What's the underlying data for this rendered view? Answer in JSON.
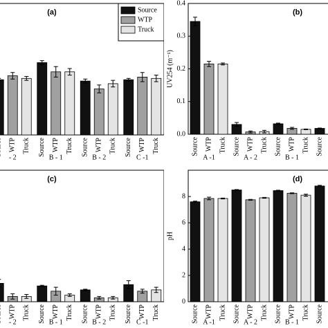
{
  "chart_data": [
    {
      "type": "bar",
      "title": "(a)",
      "categories": [
        "- 2",
        "B - 1",
        "B - 2",
        "C -1"
      ],
      "series": [
        {
          "name": "Source",
          "color": "#111111",
          "values": [
            0.42,
            0.55,
            0.41,
            0.42
          ],
          "errors": [
            0.01,
            0.015,
            0.015,
            0.01
          ]
        },
        {
          "name": "WTP",
          "color": "#a0a0a0",
          "values": [
            0.45,
            0.48,
            0.35,
            0.44
          ],
          "errors": [
            0.025,
            0.04,
            0.03,
            0.035
          ]
        },
        {
          "name": "Truck",
          "color": "#e4e4e4",
          "values": [
            0.43,
            0.48,
            0.39,
            0.43
          ],
          "errors": [
            0.015,
            0.025,
            0.025,
            0.025
          ]
        }
      ],
      "ylim": [
        0,
        1
      ],
      "legend": "upper right"
    },
    {
      "type": "bar",
      "title": "(b)",
      "ylabel": "UV254 (m⁻¹)",
      "categories": [
        "A -1",
        "A - 2",
        "B - 1",
        null
      ],
      "series": [
        {
          "name": "Source",
          "color": "#111111",
          "values": [
            0.345,
            0.03,
            0.032,
            0.018
          ],
          "errors": [
            0.013,
            0.006,
            0.002,
            0.001
          ]
        },
        {
          "name": "WTP",
          "color": "#a0a0a0",
          "values": [
            0.215,
            0.007,
            0.018,
            null
          ],
          "errors": [
            0.008,
            0.003,
            0.003,
            null
          ]
        },
        {
          "name": "Truck",
          "color": "#e4e4e4",
          "values": [
            0.215,
            0.008,
            0.015,
            null
          ],
          "errors": [
            0.003,
            0.004,
            0.001,
            null
          ]
        }
      ],
      "ylim": [
        0,
        0.4
      ],
      "yticks": [
        {
          "value": 0,
          "label": "0.0"
        },
        0.1,
        0.2,
        0.3,
        0.4
      ]
    },
    {
      "type": "bar",
      "title": "(c)",
      "categories": [
        "- 2",
        "B - 1",
        "B - 2",
        "C -1"
      ],
      "series": [
        {
          "name": "Source",
          "color": "#111111",
          "values": [
            0.14,
            0.12,
            0.09,
            0.13
          ],
          "errors": [
            0.03,
            0.005,
            0.005,
            0.03
          ]
        },
        {
          "name": "WTP",
          "color": "#a0a0a0",
          "values": [
            0.04,
            0.08,
            0.03,
            0.08
          ],
          "errors": [
            0.02,
            0.03,
            0.01,
            0.015
          ]
        },
        {
          "name": "Truck",
          "color": "#e4e4e4",
          "values": [
            0.04,
            0.05,
            0.03,
            0.09
          ],
          "errors": [
            0.015,
            0.01,
            0.01,
            0.02
          ]
        }
      ],
      "ylim": [
        0,
        1
      ]
    },
    {
      "type": "bar",
      "title": "(d)",
      "ylabel": "pH",
      "categories": [
        "A -1",
        "A - 2",
        "B - 1",
        null
      ],
      "series": [
        {
          "name": "Source",
          "color": "#111111",
          "values": [
            7.6,
            8.5,
            8.45,
            8.8
          ],
          "errors": [
            0.05,
            0.03,
            0.03,
            0.05
          ]
        },
        {
          "name": "WTP",
          "color": "#a0a0a0",
          "values": [
            7.85,
            7.75,
            8.25,
            null
          ],
          "errors": [
            0.1,
            0.03,
            0.03,
            null
          ]
        },
        {
          "name": "Truck",
          "color": "#e4e4e4",
          "values": [
            7.85,
            7.9,
            8.1,
            null
          ],
          "errors": [
            0.03,
            0.03,
            0.08,
            null
          ]
        }
      ],
      "ylim": [
        0,
        10
      ],
      "yticks": [
        0,
        2,
        4,
        6,
        8
      ]
    }
  ]
}
